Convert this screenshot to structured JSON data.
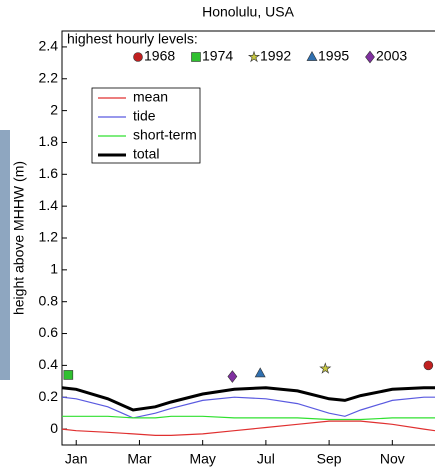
{
  "chart_data": {
    "type": "line",
    "title": "Honolulu, USA",
    "ylabel": "height above MHHW (m)",
    "annotation": "highest hourly levels:",
    "x": [
      0.55,
      1,
      2,
      2.8,
      3.5,
      4,
      5,
      6,
      7,
      8,
      9,
      9.5,
      10,
      11,
      12,
      12.35
    ],
    "series": [
      {
        "name": "mean",
        "color": "#e03030",
        "width": 1.2,
        "values": [
          0,
          -0.01,
          -0.02,
          -0.03,
          -0.04,
          -0.04,
          -0.03,
          -0.01,
          0.01,
          0.03,
          0.05,
          0.05,
          0.05,
          0.03,
          0,
          -0.01
        ]
      },
      {
        "name": "tide",
        "color": "#5a5ae0",
        "width": 1.2,
        "values": [
          0.2,
          0.19,
          0.14,
          0.07,
          0.1,
          0.13,
          0.18,
          0.2,
          0.19,
          0.16,
          0.1,
          0.08,
          0.12,
          0.18,
          0.2,
          0.2
        ]
      },
      {
        "name": "short-term",
        "color": "#30e030",
        "width": 1.2,
        "values": [
          0.08,
          0.08,
          0.08,
          0.07,
          0.07,
          0.08,
          0.08,
          0.07,
          0.07,
          0.07,
          0.06,
          0.06,
          0.06,
          0.07,
          0.07,
          0.07
        ]
      },
      {
        "name": "total",
        "color": "#000000",
        "width": 3,
        "values": [
          0.26,
          0.25,
          0.19,
          0.12,
          0.14,
          0.17,
          0.22,
          0.25,
          0.26,
          0.24,
          0.19,
          0.18,
          0.21,
          0.25,
          0.26,
          0.26
        ]
      }
    ],
    "markers": [
      {
        "name": "1968",
        "marker": "circle",
        "color": "#c02020",
        "x": 12.14,
        "y": 0.4
      },
      {
        "name": "1974",
        "marker": "square",
        "color": "#30c030",
        "x": 0.75,
        "y": 0.34
      },
      {
        "name": "1992",
        "marker": "star",
        "color": "#c8c840",
        "x": 8.88,
        "y": 0.38
      },
      {
        "name": "1995",
        "marker": "triangle",
        "color": "#3070b0",
        "x": 6.82,
        "y": 0.35
      },
      {
        "name": "2003",
        "marker": "diamond",
        "color": "#8030a0",
        "x": 5.94,
        "y": 0.33
      }
    ],
    "xlim": [
      0.55,
      12.35
    ],
    "ylim": [
      -0.1,
      2.5
    ],
    "xticks": [
      {
        "value": 1,
        "label": "Jan"
      },
      {
        "value": 3,
        "label": "Mar"
      },
      {
        "value": 5,
        "label": "May"
      },
      {
        "value": 7,
        "label": "Jul"
      },
      {
        "value": 9,
        "label": "Sep"
      },
      {
        "value": 11,
        "label": "Nov"
      }
    ],
    "yticks": [
      0,
      0.2,
      0.4,
      0.6,
      0.8,
      1,
      1.2,
      1.4,
      1.6,
      1.8,
      2,
      2.2,
      2.4
    ]
  }
}
